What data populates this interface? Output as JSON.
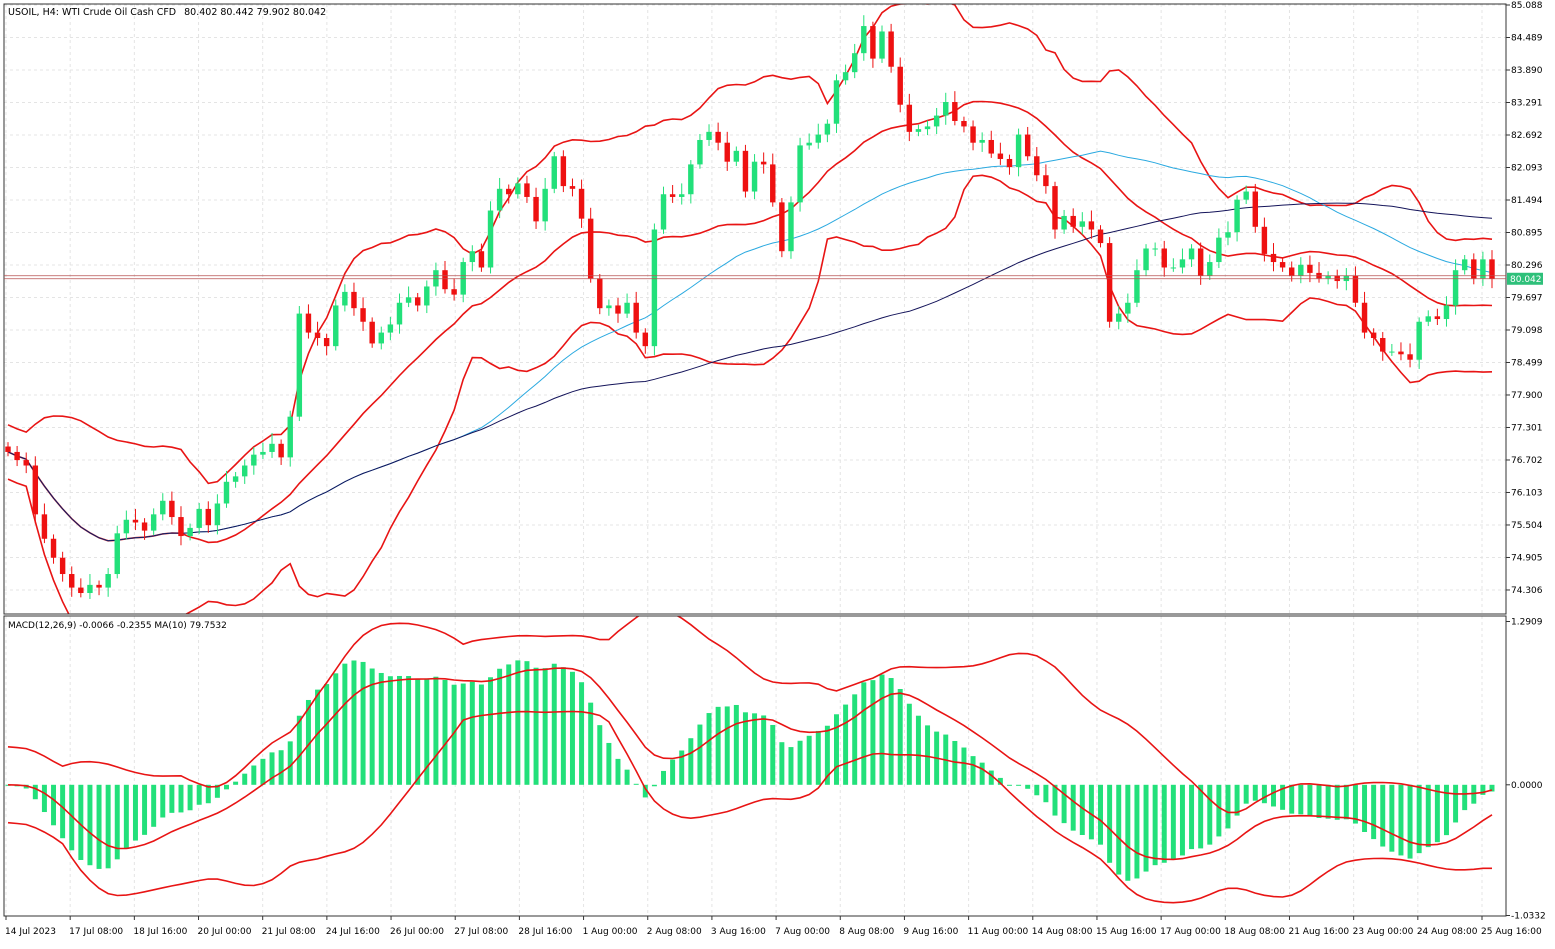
{
  "header": {
    "symbol_info": "USOIL, H4:  WTI Crude Oil Cash CFD",
    "ohlc": "80.402 80.442 79.902 80.042"
  },
  "indicator": {
    "label": "MACD(12,26,9) -0.0066 -0.2355 MA(10) 79.7532"
  },
  "colors": {
    "bull": "#22e07a",
    "bear": "#ee1111",
    "bollinger": "#e81414",
    "ma_fast": "#2aa9e0",
    "ma_slow": "#14145a",
    "macd_hist": "#22e07a",
    "price_line": "#b85050",
    "price_tag_bg": "#2ec07a",
    "grid": "#e4e4e4",
    "frame": "#333333"
  },
  "chart_data": [
    {
      "type": "candlestick",
      "symbol": "USOIL",
      "timeframe": "H4",
      "ylim": [
        73.9,
        85.088
      ],
      "yticks": [
        "85.088",
        "84.489",
        "83.890",
        "83.291",
        "82.692",
        "82.093",
        "81.494",
        "80.895",
        "80.296",
        "79.697",
        "79.098",
        "78.499",
        "77.900",
        "77.301",
        "76.702",
        "76.103",
        "75.504",
        "74.905",
        "74.306"
      ],
      "last_price": "80.042",
      "xticks": [
        "14 Jul 2023",
        "17 Jul 08:00",
        "18 Jul 16:00",
        "20 Jul 00:00",
        "21 Jul 08:00",
        "24 Jul 16:00",
        "26 Jul 00:00",
        "27 Jul 08:00",
        "28 Jul 16:00",
        "1 Aug 00:00",
        "2 Aug 08:00",
        "3 Aug 16:00",
        "7 Aug 00:00",
        "8 Aug 08:00",
        "9 Aug 16:00",
        "11 Aug 00:00",
        "14 Aug 08:00",
        "15 Aug 16:00",
        "17 Aug 00:00",
        "18 Aug 08:00",
        "21 Aug 16:00",
        "23 Aug 00:00",
        "24 Aug 08:00",
        "25 Aug 16:00"
      ],
      "close": [
        76.85,
        76.7,
        76.6,
        75.7,
        75.25,
        74.9,
        74.6,
        74.35,
        74.25,
        74.4,
        74.35,
        74.6,
        75.35,
        75.6,
        75.55,
        75.4,
        75.7,
        75.95,
        75.65,
        75.3,
        75.45,
        75.8,
        75.5,
        75.9,
        76.3,
        76.4,
        76.6,
        76.8,
        76.85,
        77.0,
        76.75,
        77.5,
        79.4,
        79.05,
        78.95,
        78.8,
        79.55,
        79.8,
        79.5,
        79.25,
        78.85,
        79.05,
        79.2,
        79.6,
        79.7,
        79.55,
        79.9,
        80.2,
        79.85,
        79.75,
        80.35,
        80.55,
        80.25,
        81.3,
        81.7,
        81.6,
        81.8,
        81.55,
        81.1,
        81.7,
        82.3,
        81.75,
        81.7,
        81.15,
        80.05,
        79.5,
        79.55,
        79.4,
        79.6,
        79.05,
        78.8,
        80.95,
        81.6,
        81.55,
        81.6,
        82.15,
        82.6,
        82.75,
        82.55,
        82.2,
        82.4,
        81.65,
        82.2,
        82.15,
        81.45,
        80.55,
        81.45,
        82.5,
        82.55,
        82.7,
        82.9,
        83.7,
        83.85,
        84.2,
        84.7,
        84.1,
        84.6,
        83.95,
        83.25,
        82.75,
        82.8,
        82.85,
        83.05,
        83.3,
        82.95,
        82.85,
        82.55,
        82.6,
        82.35,
        82.25,
        82.1,
        82.7,
        82.3,
        81.95,
        81.75,
        80.95,
        81.2,
        81.0,
        81.1,
        80.95,
        80.7,
        79.25,
        79.4,
        79.6,
        80.2,
        80.6,
        80.6,
        80.25,
        80.25,
        80.4,
        80.6,
        80.1,
        80.35,
        80.8,
        80.9,
        81.5,
        81.65,
        81.0,
        80.5,
        80.35,
        80.25,
        80.1,
        80.3,
        80.15,
        80.05,
        80.1,
        80.0,
        80.1,
        79.6,
        79.05,
        78.95,
        78.7,
        78.7,
        78.65,
        78.55,
        79.25,
        79.35,
        79.3,
        79.55,
        80.2,
        80.4,
        80.05,
        80.4,
        80.04
      ],
      "bollinger": {
        "period": 20,
        "deviations": 2
      },
      "moving_averages": [
        "fast",
        "slow"
      ]
    },
    {
      "type": "bar",
      "name": "MACD(12,26,9)",
      "values_text": "-0.0066 -0.2355 MA(10) 79.7532",
      "ylim": [
        -1.0332,
        1.2909
      ],
      "yticks": [
        "1.2909",
        "0.0000",
        "-1.0332"
      ]
    }
  ]
}
